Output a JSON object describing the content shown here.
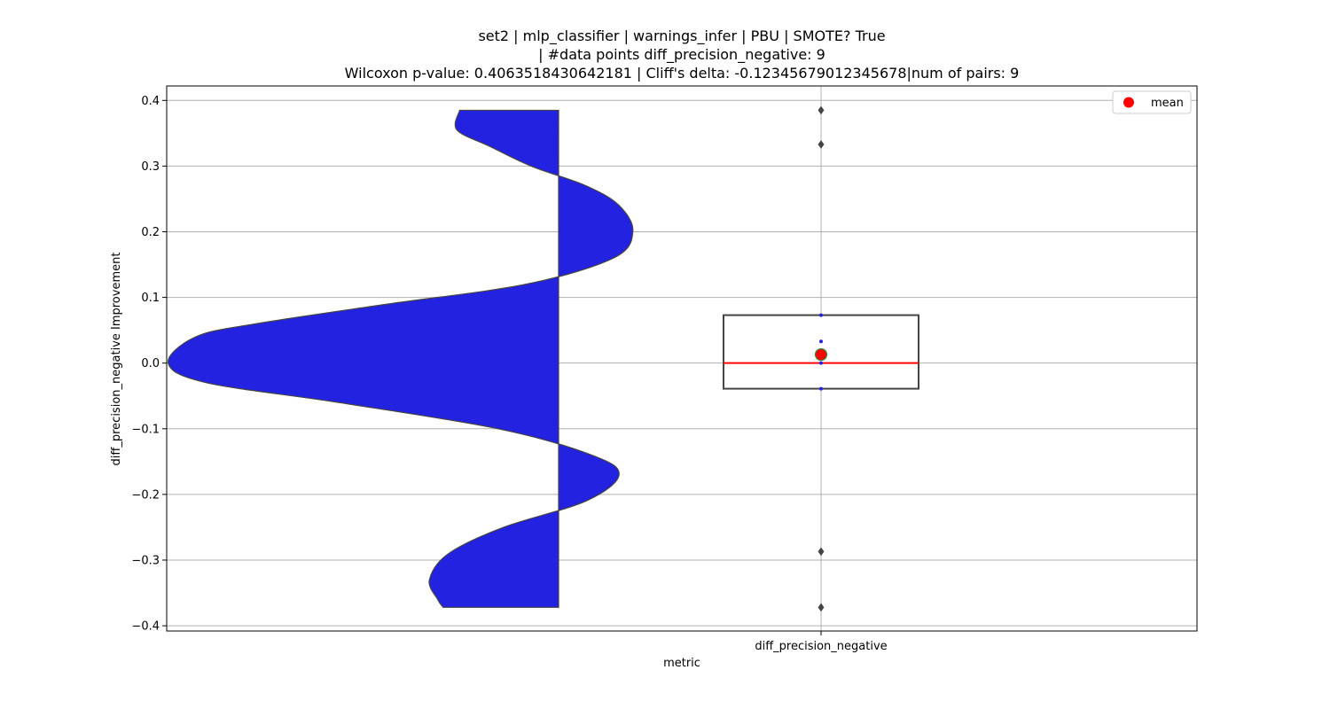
{
  "chart_data": {
    "type": "violin_box",
    "title_lines": [
      "set2 | mlp_classifier | warnings_infer | PBU | SMOTE? True",
      "| #data points diff_precision_negative: 9",
      "Wilcoxon p-value: 0.4063518430642181 | Cliff's delta: -0.12345679012345678|num of pairs: 9"
    ],
    "xlabel": "metric",
    "ylabel": "diff_precision_negative Improvement",
    "categories": [
      "diff_precision_negative"
    ],
    "ylim": [
      -0.408,
      0.422
    ],
    "yticks": [
      -0.4,
      -0.3,
      -0.2,
      -0.1,
      0.0,
      0.1,
      0.2,
      0.3,
      0.4
    ],
    "ytick_labels": [
      "−0.4",
      "−0.3",
      "−0.2",
      "−0.1",
      "0.0",
      "0.1",
      "0.2",
      "0.3",
      "0.4"
    ],
    "grid": true,
    "legend": {
      "position": "top-right",
      "entries": [
        {
          "label": "mean",
          "color": "#ff0000",
          "marker": "circle"
        }
      ]
    },
    "violin": {
      "color": "#2222e0",
      "edge_color": "#444444",
      "side": "left",
      "density": [
        {
          "y": 0.385,
          "w": 0.36
        },
        {
          "y": 0.355,
          "w": 0.37
        },
        {
          "y": 0.33,
          "w": 0.25
        },
        {
          "y": 0.3,
          "w": 0.1
        },
        {
          "y": 0.27,
          "w": -0.1
        },
        {
          "y": 0.24,
          "w": -0.22
        },
        {
          "y": 0.2,
          "w": -0.27
        },
        {
          "y": 0.16,
          "w": -0.2
        },
        {
          "y": 0.12,
          "w": 0.12
        },
        {
          "y": 0.09,
          "w": 0.62
        },
        {
          "y": 0.06,
          "w": 1.1
        },
        {
          "y": 0.04,
          "w": 1.32
        },
        {
          "y": 0.0,
          "w": 1.42
        },
        {
          "y": -0.03,
          "w": 1.28
        },
        {
          "y": -0.06,
          "w": 0.8
        },
        {
          "y": -0.1,
          "w": 0.22
        },
        {
          "y": -0.14,
          "w": -0.12
        },
        {
          "y": -0.17,
          "w": -0.22
        },
        {
          "y": -0.21,
          "w": -0.1
        },
        {
          "y": -0.25,
          "w": 0.2
        },
        {
          "y": -0.29,
          "w": 0.4
        },
        {
          "y": -0.33,
          "w": 0.47
        },
        {
          "y": -0.36,
          "w": 0.44
        },
        {
          "y": -0.372,
          "w": 0.42
        }
      ]
    },
    "box": {
      "q1": -0.039,
      "median": 0.0,
      "q3": 0.073,
      "whisker_low": -0.039,
      "whisker_high": 0.073,
      "outliers": [
        0.385,
        0.333,
        -0.287,
        -0.372
      ],
      "mean": 0.013,
      "box_color": "#444444",
      "median_color": "#ff0000",
      "mean_color": "#ff0000",
      "mean_edge_color": "#2e8b2e"
    },
    "points": [
      0.073,
      0.033,
      0.0,
      -0.039
    ]
  }
}
